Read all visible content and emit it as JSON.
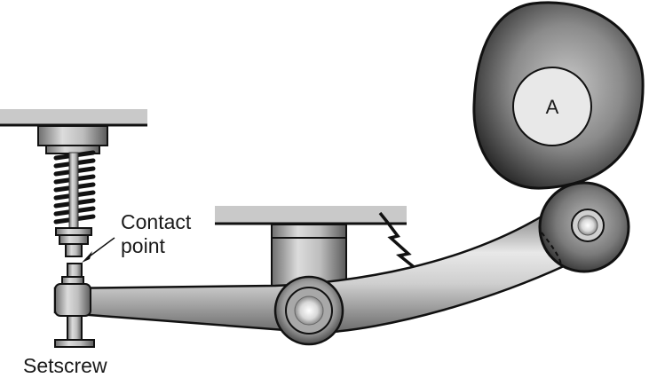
{
  "labels": {
    "cam": "A",
    "contact_line1": "Contact",
    "contact_line2": "point",
    "setscrew": "Setscrew"
  }
}
